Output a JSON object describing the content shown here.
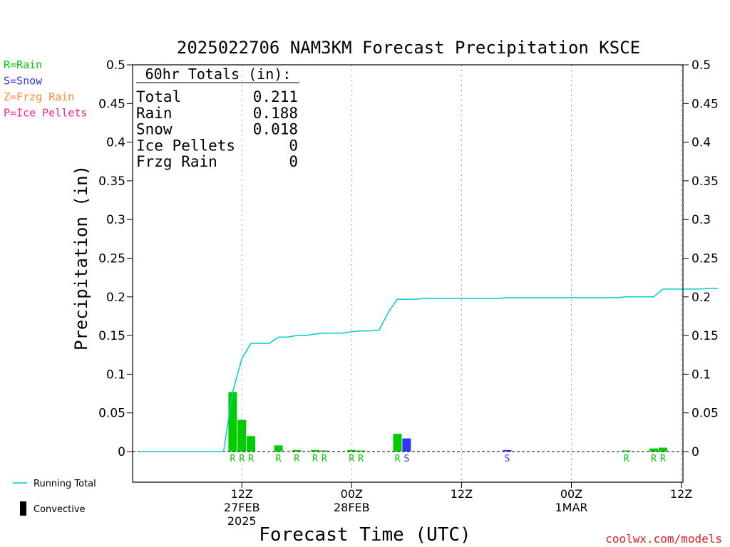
{
  "chart_data": {
    "type": "bar",
    "title": "2025022706 NAM3KM Forecast Precipitation KSCE",
    "xlabel": "Forecast Time (UTC)",
    "ylabel": "Precipitation (in)",
    "ylim": [
      -0.04,
      0.5
    ],
    "y_ticks": [
      "0.5",
      "0.45",
      "0.4",
      "0.35",
      "0.3",
      "0.25",
      "0.2",
      "0.15",
      "0.1",
      "0.05",
      "0"
    ],
    "x_ticks": [
      {
        "hour": 12,
        "line1": "12Z",
        "line2": "27FEB",
        "line3": "2025"
      },
      {
        "hour": 24,
        "line1": "00Z",
        "line2": "28FEB",
        "line3": ""
      },
      {
        "hour": 36,
        "line1": "12Z",
        "line2": "",
        "line3": ""
      },
      {
        "hour": 48,
        "line1": "00Z",
        "line2": "1MAR",
        "line3": ""
      },
      {
        "hour": 60,
        "line1": "12Z",
        "line2": "",
        "line3": ""
      }
    ],
    "type_legend": [
      {
        "text": "R=Rain",
        "color": "#00cc00"
      },
      {
        "text": "S=Snow",
        "color": "#3333ff"
      },
      {
        "text": "Z=Frzg Rain",
        "color": "#ff8833"
      },
      {
        "text": "P=Ice Pellets",
        "color": "#ff2288"
      }
    ],
    "totals_box": {
      "heading": "60hr Totals (in):",
      "rows": [
        {
          "label": "Total",
          "value": "0.211"
        },
        {
          "label": "Rain",
          "value": "0.188"
        },
        {
          "label": "Snow",
          "value": "0.018"
        },
        {
          "label": "Ice Pellets",
          "value": "0"
        },
        {
          "label": "Frzg Rain",
          "value": "0"
        }
      ]
    },
    "bars": [
      {
        "hour": 11,
        "value": 0.077,
        "type": "R",
        "color": "#00cc00"
      },
      {
        "hour": 12,
        "value": 0.041,
        "type": "R",
        "color": "#00cc00"
      },
      {
        "hour": 13,
        "value": 0.02,
        "type": "R",
        "color": "#00cc00"
      },
      {
        "hour": 16,
        "value": 0.008,
        "type": "R",
        "color": "#00cc00"
      },
      {
        "hour": 18,
        "value": 0.002,
        "type": "R",
        "color": "#00cc00"
      },
      {
        "hour": 20,
        "value": 0.002,
        "type": "R",
        "color": "#00cc00"
      },
      {
        "hour": 21,
        "value": 0.001,
        "type": "R",
        "color": "#00cc00"
      },
      {
        "hour": 24,
        "value": 0.002,
        "type": "R",
        "color": "#00cc00"
      },
      {
        "hour": 25,
        "value": 0.001,
        "type": "R",
        "color": "#00cc00"
      },
      {
        "hour": 29,
        "value": 0.023,
        "type": "R",
        "color": "#00cc00"
      },
      {
        "hour": 30,
        "value": 0.017,
        "type": "S",
        "color": "#3333ff"
      },
      {
        "hour": 41,
        "value": 0.002,
        "type": "S",
        "color": "#3333ff"
      },
      {
        "hour": 54,
        "value": 0.001,
        "type": "R",
        "color": "#00cc00"
      },
      {
        "hour": 57,
        "value": 0.004,
        "type": "R",
        "color": "#00cc00"
      },
      {
        "hour": 58,
        "value": 0.005,
        "type": "R",
        "color": "#00cc00"
      }
    ],
    "running_total": {
      "name": "Running Total",
      "color": "#00cccc",
      "x": [
        1,
        2,
        3,
        4,
        5,
        6,
        7,
        8,
        9,
        10,
        11,
        12,
        13,
        14,
        15,
        16,
        17,
        18,
        19,
        20,
        21,
        22,
        23,
        24,
        25,
        26,
        27,
        28,
        29,
        30,
        31,
        32,
        33,
        34,
        35,
        36,
        37,
        38,
        39,
        40,
        41,
        42,
        43,
        44,
        45,
        46,
        47,
        48,
        49,
        50,
        51,
        52,
        53,
        54,
        55,
        56,
        57,
        58,
        59,
        60,
        61,
        62,
        63,
        64
      ],
      "y": [
        0,
        0,
        0,
        0,
        0,
        0,
        0,
        0,
        0,
        0,
        0.077,
        0.12,
        0.14,
        0.14,
        0.14,
        0.148,
        0.148,
        0.15,
        0.15,
        0.152,
        0.153,
        0.153,
        0.153,
        0.155,
        0.156,
        0.156,
        0.157,
        0.18,
        0.197,
        0.197,
        0.197,
        0.198,
        0.198,
        0.198,
        0.198,
        0.198,
        0.198,
        0.198,
        0.198,
        0.198,
        0.199,
        0.199,
        0.199,
        0.199,
        0.199,
        0.199,
        0.199,
        0.199,
        0.199,
        0.199,
        0.199,
        0.199,
        0.199,
        0.2,
        0.2,
        0.2,
        0.2,
        0.21,
        0.21,
        0.21,
        0.21,
        0.21,
        0.211,
        0.211
      ]
    },
    "series_legend": [
      {
        "name": "Running Total",
        "marker": "line",
        "color": "#00cccc"
      },
      {
        "name": "Convective",
        "marker": "box",
        "color": "#000000"
      }
    ],
    "grid": "vertical dotted at 12Z/00Z",
    "credit": "coolwx.com/models"
  }
}
